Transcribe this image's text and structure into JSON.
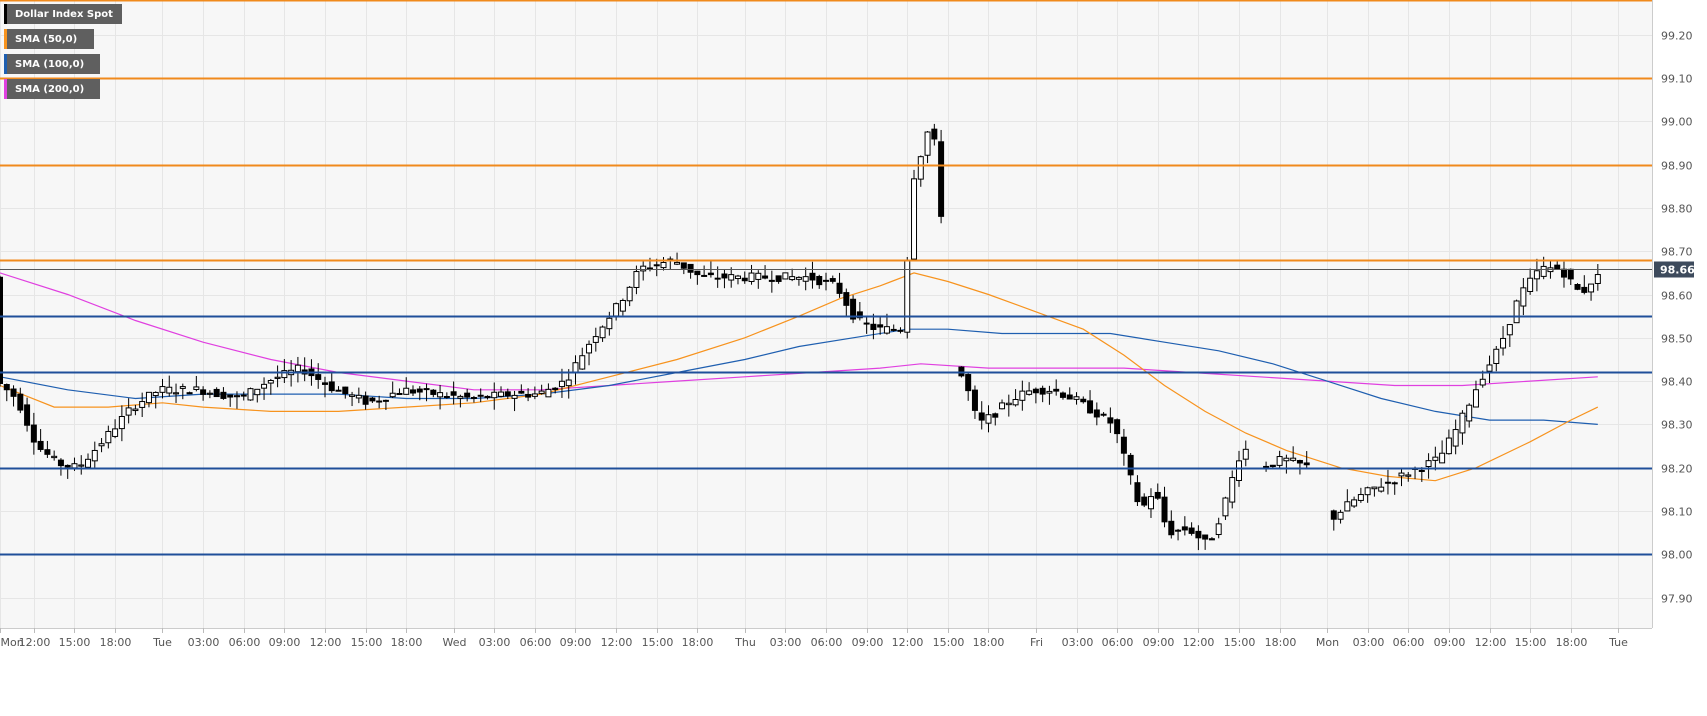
{
  "legend": {
    "items": [
      {
        "label": "Dollar Index Spot",
        "color": "#000000"
      },
      {
        "label": "SMA (50,0)",
        "color": "#f7931e"
      },
      {
        "label": "SMA (100,0)",
        "color": "#1f5fb0"
      },
      {
        "label": "SMA (200,0)",
        "color": "#e040e0"
      }
    ]
  },
  "colors": {
    "grid": "#e6e6e6",
    "plot_bg": "#f7f7f7",
    "axis_text": "#555555",
    "resistance": "#f08a1c",
    "support": "#1f4f9a",
    "candle_up_fill": "#ffffff",
    "candle_down_fill": "#000000",
    "sma50": "#f7931e",
    "sma100": "#1f5fb0",
    "sma200": "#e040e0",
    "price_line": "#555555",
    "price_badge": "#3d4a5c"
  },
  "chart_data": {
    "type": "candlestick",
    "symbol": "Dollar Index Spot",
    "ylim": [
      97.83,
      99.28
    ],
    "y_ticks": [
      "99.20",
      "99.10",
      "99.00",
      "98.90",
      "98.80",
      "98.70",
      "98.60",
      "98.50",
      "98.40",
      "98.30",
      "98.20",
      "98.10",
      "98.00",
      "97.90"
    ],
    "x_ticks": [
      "Mon",
      "12:00",
      "15:00",
      "18:00",
      "Tue",
      "03:00",
      "06:00",
      "09:00",
      "12:00",
      "15:00",
      "18:00",
      "Wed",
      "03:00",
      "06:00",
      "09:00",
      "12:00",
      "15:00",
      "18:00",
      "Thu",
      "03:00",
      "06:00",
      "09:00",
      "12:00",
      "15:00",
      "18:00",
      "Fri",
      "03:00",
      "06:00",
      "09:00",
      "12:00",
      "15:00",
      "18:00",
      "Mon",
      "03:00",
      "06:00",
      "09:00",
      "12:00",
      "15:00",
      "18:00",
      "Tue"
    ],
    "x_tick_pos": [
      0,
      5,
      11,
      17,
      24,
      30,
      36,
      42,
      48,
      54,
      60,
      67,
      73,
      79,
      85,
      91,
      97,
      103,
      110,
      116,
      122,
      128,
      134,
      140,
      146,
      153,
      159,
      165,
      171,
      177,
      183,
      189,
      196,
      202,
      208,
      214,
      220,
      226,
      232,
      239
    ],
    "x_range": [
      0,
      244
    ],
    "last_price": "98.66",
    "resistance_levels": [
      99.28,
      99.1,
      98.9,
      98.68
    ],
    "support_levels": [
      98.55,
      98.42,
      98.2,
      98.0
    ],
    "ohlc": [],
    "sma50": [
      [
        0,
        98.39
      ],
      [
        8,
        98.34
      ],
      [
        16,
        98.34
      ],
      [
        24,
        98.35
      ],
      [
        30,
        98.34
      ],
      [
        40,
        98.33
      ],
      [
        50,
        98.33
      ],
      [
        60,
        98.34
      ],
      [
        70,
        98.35
      ],
      [
        80,
        98.37
      ],
      [
        90,
        98.41
      ],
      [
        100,
        98.45
      ],
      [
        110,
        98.5
      ],
      [
        118,
        98.55
      ],
      [
        124,
        98.59
      ],
      [
        130,
        98.62
      ],
      [
        135,
        98.65
      ],
      [
        140,
        98.63
      ],
      [
        146,
        98.6
      ],
      [
        153,
        98.56
      ],
      [
        160,
        98.52
      ],
      [
        166,
        98.46
      ],
      [
        172,
        98.39
      ],
      [
        178,
        98.33
      ],
      [
        184,
        98.28
      ],
      [
        190,
        98.24
      ],
      [
        198,
        98.2
      ],
      [
        205,
        98.18
      ],
      [
        212,
        98.17
      ],
      [
        218,
        98.2
      ],
      [
        226,
        98.26
      ],
      [
        232,
        98.31
      ],
      [
        236,
        98.34
      ]
    ],
    "sma100": [
      [
        0,
        98.41
      ],
      [
        10,
        98.38
      ],
      [
        20,
        98.36
      ],
      [
        30,
        98.37
      ],
      [
        40,
        98.37
      ],
      [
        50,
        98.37
      ],
      [
        60,
        98.36
      ],
      [
        70,
        98.36
      ],
      [
        80,
        98.37
      ],
      [
        90,
        98.39
      ],
      [
        100,
        98.42
      ],
      [
        110,
        98.45
      ],
      [
        118,
        98.48
      ],
      [
        126,
        98.5
      ],
      [
        134,
        98.52
      ],
      [
        140,
        98.52
      ],
      [
        148,
        98.51
      ],
      [
        156,
        98.51
      ],
      [
        164,
        98.51
      ],
      [
        172,
        98.49
      ],
      [
        180,
        98.47
      ],
      [
        188,
        98.44
      ],
      [
        196,
        98.4
      ],
      [
        204,
        98.36
      ],
      [
        212,
        98.33
      ],
      [
        220,
        98.31
      ],
      [
        228,
        98.31
      ],
      [
        236,
        98.3
      ]
    ],
    "sma200": [
      [
        0,
        98.65
      ],
      [
        10,
        98.6
      ],
      [
        20,
        98.54
      ],
      [
        30,
        98.49
      ],
      [
        40,
        98.45
      ],
      [
        50,
        98.42
      ],
      [
        60,
        98.4
      ],
      [
        70,
        98.38
      ],
      [
        80,
        98.38
      ],
      [
        90,
        98.39
      ],
      [
        100,
        98.4
      ],
      [
        110,
        98.41
      ],
      [
        120,
        98.42
      ],
      [
        130,
        98.43
      ],
      [
        136,
        98.44
      ],
      [
        146,
        98.43
      ],
      [
        156,
        98.43
      ],
      [
        166,
        98.43
      ],
      [
        176,
        98.42
      ],
      [
        186,
        98.41
      ],
      [
        196,
        98.4
      ],
      [
        206,
        98.39
      ],
      [
        216,
        98.39
      ],
      [
        226,
        98.4
      ],
      [
        236,
        98.41
      ]
    ]
  }
}
